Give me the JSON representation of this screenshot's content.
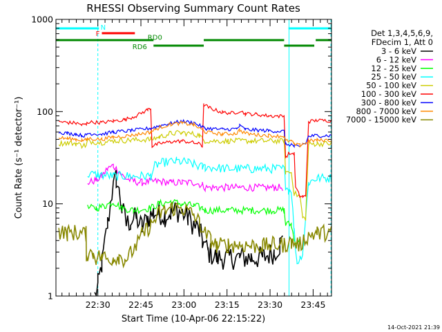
{
  "chart_data": {
    "type": "line",
    "title": "RHESSI Observing Summary Count Rates",
    "xlabel": "Start Time (10-Apr-06 22:15:22)",
    "ylabel": "Count Rate (s⁻¹ detector⁻¹)",
    "yscale": "log",
    "ylim": [
      1,
      1000
    ],
    "xlim": [
      0,
      96
    ],
    "x_unit": "minutes after 22:15:22",
    "xticks": [
      {
        "t": 14.6,
        "label": "22:30"
      },
      {
        "t": 29.6,
        "label": "22:45"
      },
      {
        "t": 44.6,
        "label": "23:00"
      },
      {
        "t": 59.6,
        "label": "23:15"
      },
      {
        "t": 74.6,
        "label": "23:30"
      },
      {
        "t": 89.6,
        "label": "23:45"
      }
    ],
    "yticks": [
      {
        "v": 1,
        "label": "1"
      },
      {
        "v": 10,
        "label": "10"
      },
      {
        "v": 100,
        "label": "100"
      },
      {
        "v": 1000,
        "label": "1000"
      }
    ],
    "legend_header": [
      "Det 1,3,4,5,6,9,",
      "FDecim 1, Att 0"
    ],
    "series": [
      {
        "name": "3 - 6 keV",
        "color": "#000000",
        "noise": 0.13,
        "points": [
          [
            0,
            null
          ],
          [
            13,
            null
          ],
          [
            13.5,
            1
          ],
          [
            14.6,
            1.3
          ],
          [
            16,
            2.2
          ],
          [
            18,
            6
          ],
          [
            19.5,
            13
          ],
          [
            21,
            19
          ],
          [
            23,
            9
          ],
          [
            24.5,
            6
          ],
          [
            26,
            6.5
          ],
          [
            28,
            7
          ],
          [
            30,
            5.5
          ],
          [
            32,
            7
          ],
          [
            34,
            8
          ],
          [
            36,
            8
          ],
          [
            38,
            7.5
          ],
          [
            40,
            8
          ],
          [
            42,
            8.5
          ],
          [
            44,
            8
          ],
          [
            46,
            7
          ],
          [
            48,
            6
          ],
          [
            50,
            5
          ],
          [
            51,
            4
          ],
          [
            53,
            3
          ],
          [
            56,
            2.6
          ],
          [
            60,
            2.6
          ],
          [
            64,
            2.6
          ],
          [
            68,
            2.6
          ],
          [
            72,
            2.6
          ],
          [
            76,
            3
          ],
          [
            78,
            3.6
          ],
          [
            79,
            4
          ],
          [
            80.5,
            null
          ],
          [
            96,
            null
          ]
        ]
      },
      {
        "name": "6 - 12 keV",
        "color": "#ff00ff",
        "noise": 0.04,
        "points": [
          [
            0,
            null
          ],
          [
            10.6,
            null
          ],
          [
            11,
            17
          ],
          [
            14,
            18
          ],
          [
            16,
            20
          ],
          [
            18,
            24
          ],
          [
            20,
            26
          ],
          [
            21.5,
            23
          ],
          [
            24,
            19
          ],
          [
            27,
            17.5
          ],
          [
            30,
            17
          ],
          [
            33,
            17.5
          ],
          [
            36,
            17.5
          ],
          [
            40,
            17
          ],
          [
            44,
            17
          ],
          [
            48,
            17
          ],
          [
            51,
            16
          ],
          [
            52,
            15
          ],
          [
            56,
            15
          ],
          [
            60,
            15
          ],
          [
            64,
            15
          ],
          [
            68,
            15
          ],
          [
            72,
            15
          ],
          [
            76,
            15
          ],
          [
            79,
            15
          ],
          [
            80,
            null
          ],
          [
            96,
            null
          ]
        ]
      },
      {
        "name": "12 - 25 keV",
        "color": "#00ff00",
        "noise": 0.04,
        "points": [
          [
            0,
            null
          ],
          [
            10.6,
            null
          ],
          [
            11,
            9
          ],
          [
            14,
            9
          ],
          [
            17,
            9.5
          ],
          [
            20,
            10.5
          ],
          [
            23,
            9
          ],
          [
            27,
            8.5
          ],
          [
            33,
            9
          ],
          [
            36,
            10
          ],
          [
            40,
            10.5
          ],
          [
            44,
            10
          ],
          [
            48,
            9.5
          ],
          [
            51,
            9
          ],
          [
            52,
            8.5
          ],
          [
            60,
            8.5
          ],
          [
            68,
            8.5
          ],
          [
            76,
            8.5
          ],
          [
            79.5,
            8.5
          ],
          [
            80,
            6
          ],
          [
            82,
            6
          ],
          [
            83,
            4
          ],
          [
            85,
            4
          ],
          [
            86,
            null
          ],
          [
            96,
            null
          ]
        ]
      },
      {
        "name": "25 - 50 keV",
        "color": "#00ffff",
        "noise": 0.05,
        "points": [
          [
            0,
            null
          ],
          [
            10.6,
            null
          ],
          [
            11,
            21
          ],
          [
            20,
            20
          ],
          [
            24,
            20
          ],
          [
            27,
            20
          ],
          [
            33,
            20
          ],
          [
            34.5,
            26
          ],
          [
            37,
            28
          ],
          [
            42,
            29
          ],
          [
            46,
            28
          ],
          [
            49,
            26
          ],
          [
            51,
            25
          ],
          [
            52,
            25
          ],
          [
            60,
            24
          ],
          [
            68,
            24
          ],
          [
            76,
            24
          ],
          [
            79.5,
            24
          ],
          [
            80,
            16
          ],
          [
            81,
            14
          ],
          [
            82,
            14
          ],
          [
            83,
            5
          ],
          [
            84,
            2.3
          ],
          [
            85,
            2.6
          ],
          [
            86,
            3
          ],
          [
            88,
            17
          ],
          [
            91,
            19
          ],
          [
            96,
            19
          ]
        ]
      },
      {
        "name": "50 - 100 keV",
        "color": "#cccc00",
        "noise": 0.03,
        "points": [
          [
            0,
            null
          ],
          [
            1,
            45
          ],
          [
            4,
            46
          ],
          [
            7,
            45
          ],
          [
            9,
            43
          ],
          [
            10.6,
            43
          ],
          [
            11,
            48
          ],
          [
            16,
            46
          ],
          [
            20,
            48
          ],
          [
            26,
            49
          ],
          [
            33,
            50
          ],
          [
            36,
            53
          ],
          [
            40,
            58
          ],
          [
            44,
            59
          ],
          [
            48,
            57
          ],
          [
            50,
            55
          ],
          [
            51,
            51
          ],
          [
            52,
            48
          ],
          [
            60,
            48
          ],
          [
            68,
            48
          ],
          [
            76,
            48
          ],
          [
            79.5,
            48
          ],
          [
            80,
            22
          ],
          [
            82,
            22
          ],
          [
            83,
            13
          ],
          [
            85,
            12
          ],
          [
            86,
            7
          ],
          [
            87,
            7
          ],
          [
            88,
            44
          ],
          [
            91,
            45
          ],
          [
            96,
            45
          ]
        ]
      },
      {
        "name": "100 - 300 keV",
        "color": "#ff0000",
        "noise": 0.02,
        "points": [
          [
            0,
            null
          ],
          [
            1,
            78
          ],
          [
            4,
            76
          ],
          [
            7,
            75
          ],
          [
            9,
            72
          ],
          [
            10.6,
            72
          ],
          [
            11,
            77
          ],
          [
            16,
            76
          ],
          [
            20,
            79
          ],
          [
            24,
            82
          ],
          [
            28,
            90
          ],
          [
            32,
            105
          ],
          [
            33,
            108
          ],
          [
            33.5,
            42
          ],
          [
            36,
            45
          ],
          [
            40,
            47
          ],
          [
            44,
            48
          ],
          [
            48,
            46
          ],
          [
            50.5,
            44
          ],
          [
            51,
            42
          ],
          [
            51.5,
            118
          ],
          [
            54,
            108
          ],
          [
            58,
            98
          ],
          [
            62,
            96
          ],
          [
            64,
            102
          ],
          [
            66,
            95
          ],
          [
            70,
            93
          ],
          [
            74,
            90
          ],
          [
            79.5,
            89
          ],
          [
            80,
            32
          ],
          [
            81,
            35
          ],
          [
            83,
            35
          ],
          [
            83.5,
            15
          ],
          [
            85,
            12
          ],
          [
            86,
            12
          ],
          [
            87,
            12
          ],
          [
            88,
            78
          ],
          [
            91,
            80
          ],
          [
            96,
            80
          ]
        ]
      },
      {
        "name": "300 - 800 keV",
        "color": "#0000ff",
        "noise": 0.02,
        "points": [
          [
            0,
            null
          ],
          [
            1,
            60
          ],
          [
            4,
            58
          ],
          [
            7,
            57
          ],
          [
            9,
            55
          ],
          [
            10.6,
            55
          ],
          [
            11,
            58
          ],
          [
            16,
            57
          ],
          [
            20,
            60
          ],
          [
            26,
            62
          ],
          [
            33,
            66
          ],
          [
            36,
            70
          ],
          [
            40,
            75
          ],
          [
            44,
            78
          ],
          [
            48,
            76
          ],
          [
            51,
            68
          ],
          [
            52,
            66
          ],
          [
            58,
            64
          ],
          [
            63,
            65
          ],
          [
            64,
            70
          ],
          [
            66,
            64
          ],
          [
            70,
            63
          ],
          [
            74,
            62
          ],
          [
            79.5,
            61
          ],
          [
            80,
            44
          ],
          [
            82,
            44
          ],
          [
            83,
            42
          ],
          [
            85,
            41
          ],
          [
            86,
            45
          ],
          [
            87,
            45
          ],
          [
            88,
            54
          ],
          [
            91,
            55
          ],
          [
            96,
            55
          ]
        ]
      },
      {
        "name": "800 - 7000 keV",
        "color": "#ff8800",
        "noise": 0.02,
        "points": [
          [
            0,
            null
          ],
          [
            1,
            52
          ],
          [
            4,
            51
          ],
          [
            7,
            50
          ],
          [
            9,
            49
          ],
          [
            10.6,
            49
          ],
          [
            11,
            51
          ],
          [
            16,
            50
          ],
          [
            20,
            53
          ],
          [
            26,
            55
          ],
          [
            33,
            60
          ],
          [
            36,
            67
          ],
          [
            40,
            73
          ],
          [
            44,
            75
          ],
          [
            48,
            72
          ],
          [
            51,
            63
          ],
          [
            52,
            60
          ],
          [
            58,
            57
          ],
          [
            63,
            58
          ],
          [
            64,
            63
          ],
          [
            66,
            58
          ],
          [
            70,
            56
          ],
          [
            74,
            55
          ],
          [
            79.5,
            54
          ],
          [
            80,
            48
          ],
          [
            82,
            48
          ],
          [
            83,
            44
          ],
          [
            85,
            43
          ],
          [
            86,
            45
          ],
          [
            87,
            45
          ],
          [
            88,
            48
          ],
          [
            91,
            49
          ],
          [
            96,
            49
          ]
        ]
      },
      {
        "name": "7000 - 15000 keV",
        "color": "#888800",
        "noise": 0.09,
        "points": [
          [
            0,
            null
          ],
          [
            1,
            5
          ],
          [
            4,
            4.8
          ],
          [
            7,
            4.9
          ],
          [
            9,
            4.7
          ],
          [
            10.5,
            4.7
          ],
          [
            10.6,
            2.9
          ],
          [
            13,
            2.9
          ],
          [
            14,
            2.6
          ],
          [
            16,
            2.7
          ],
          [
            18,
            2.5
          ],
          [
            20,
            2.6
          ],
          [
            22,
            2.7
          ],
          [
            24,
            2.5
          ],
          [
            26,
            2.9
          ],
          [
            28,
            3.5
          ],
          [
            30,
            4.6
          ],
          [
            33,
            5.9
          ],
          [
            36,
            7.8
          ],
          [
            40,
            9
          ],
          [
            44,
            8.9
          ],
          [
            48,
            7.6
          ],
          [
            50,
            6.2
          ],
          [
            52,
            4.8
          ],
          [
            54,
            4
          ],
          [
            56,
            3.5
          ],
          [
            60,
            3.6
          ],
          [
            64,
            3.6
          ],
          [
            68,
            3.5
          ],
          [
            72,
            3.5
          ],
          [
            76,
            3.6
          ],
          [
            79.5,
            3.6
          ],
          [
            80,
            3.6
          ],
          [
            82,
            3.8
          ],
          [
            85,
            3.6
          ],
          [
            88,
            4.6
          ],
          [
            91,
            4.8
          ],
          [
            96,
            4.9
          ]
        ]
      }
    ],
    "annotations": {
      "vlines_t": [
        0,
        14.6,
        81.2,
        95.8
      ],
      "state_bars": [
        {
          "label": "N",
          "color": "#00ffff",
          "row": 1,
          "segments": [
            [
              0,
              15
            ],
            [
              81,
              96
            ]
          ]
        },
        {
          "label": "F",
          "color": "#ff0000",
          "row": 2,
          "segments": [
            [
              16,
              27.5
            ]
          ]
        },
        {
          "label": "RD0",
          "color": "#008800",
          "row": 3,
          "segments": [
            [
              0,
              34
            ],
            [
              51.5,
              79.5
            ],
            [
              90.5,
              96
            ]
          ]
        },
        {
          "label": "RD6",
          "color": "#008800",
          "row": 4,
          "segments": [
            [
              34,
              51.5
            ],
            [
              79.5,
              90
            ]
          ]
        }
      ]
    }
  },
  "footer": {
    "timestamp": "14-Oct-2021 21:39"
  }
}
